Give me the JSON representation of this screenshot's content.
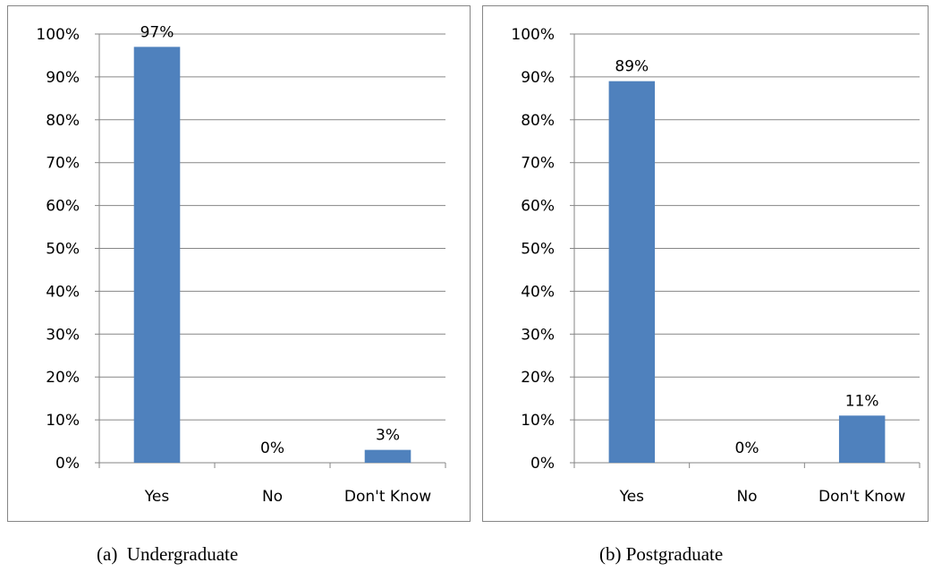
{
  "chart_data": [
    {
      "type": "bar",
      "categories": [
        "Yes",
        "No",
        "Don't Know"
      ],
      "values": [
        97,
        0,
        3
      ],
      "data_labels": [
        "97%",
        "0%",
        "3%"
      ],
      "ylim": [
        0,
        100
      ],
      "yticks": [
        "0%",
        "10%",
        "20%",
        "30%",
        "40%",
        "50%",
        "60%",
        "70%",
        "80%",
        "90%",
        "100%"
      ],
      "grid": true,
      "legend": "none",
      "bar_color": "#4F81BD",
      "caption": "(a)  Undergraduate"
    },
    {
      "type": "bar",
      "categories": [
        "Yes",
        "No",
        "Don't Know"
      ],
      "values": [
        89,
        0,
        11
      ],
      "data_labels": [
        "89%",
        "0%",
        "11%"
      ],
      "ylim": [
        0,
        100
      ],
      "yticks": [
        "0%",
        "10%",
        "20%",
        "30%",
        "40%",
        "50%",
        "60%",
        "70%",
        "80%",
        "90%",
        "100%"
      ],
      "grid": true,
      "legend": "none",
      "bar_color": "#4F81BD",
      "caption": "(b) Postgraduate"
    }
  ]
}
